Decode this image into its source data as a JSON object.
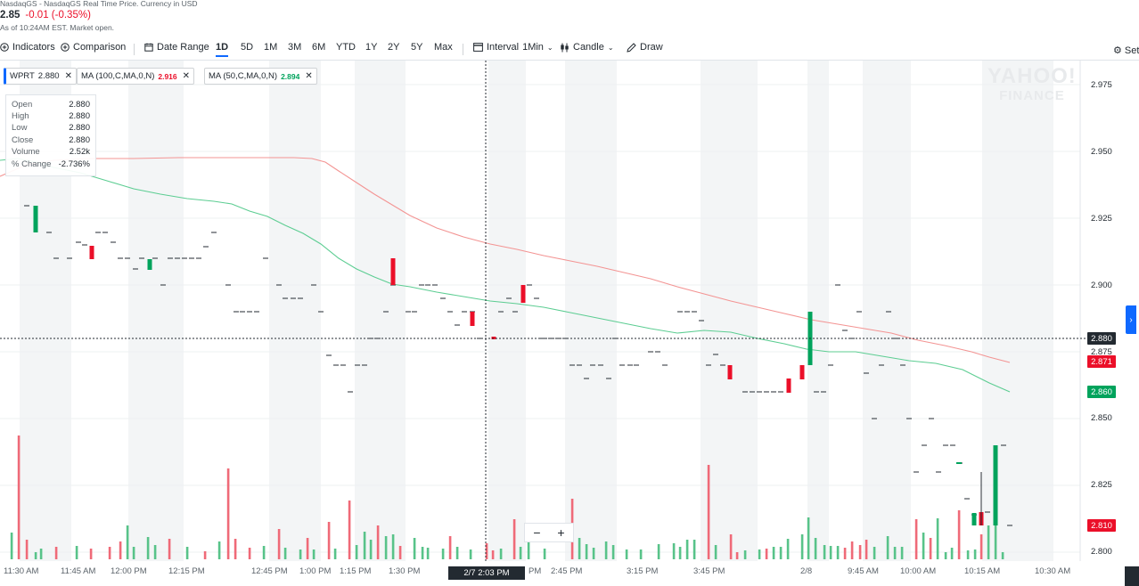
{
  "header": {
    "source_line": "NasdaqGS - NasdaqGS Real Time Price. Currency in USD",
    "price": "2.85",
    "change": "-0.01 (-0.35%)",
    "status_line": "As of 10:24AM EST. Market open."
  },
  "toolbar": {
    "indicators": "Indicators",
    "comparison": "Comparison",
    "date_range": "Date Range",
    "ranges": [
      "1D",
      "5D",
      "1M",
      "3M",
      "6M",
      "YTD",
      "1Y",
      "2Y",
      "5Y",
      "Max"
    ],
    "active_range": "1D",
    "interval_label": "Interval",
    "interval_value": "1Min",
    "candle": "Candle",
    "draw": "Draw",
    "settings": "Set"
  },
  "chips": [
    {
      "label": "WPRT",
      "value": "2.880",
      "value_color": "#232a31"
    },
    {
      "label": "MA (100,C,MA,0,N)",
      "value": "2.916",
      "value_color": "#eb0f29"
    },
    {
      "label": "MA (50,C,MA,0,N)",
      "value": "2.894",
      "value_color": "#00a35c"
    }
  ],
  "tooltip": {
    "rows": [
      {
        "k": "Open",
        "v": "2.880"
      },
      {
        "k": "High",
        "v": "2.880"
      },
      {
        "k": "Low",
        "v": "2.880"
      },
      {
        "k": "Close",
        "v": "2.880"
      },
      {
        "k": "Volume",
        "v": "2.52k"
      },
      {
        "k": "% Change",
        "v": "-2.736%"
      }
    ]
  },
  "watermark": {
    "line1": "YAHOO!",
    "line2": "FINANCE"
  },
  "y_ticks": [
    "2.975",
    "2.950",
    "2.925",
    "2.900",
    "2.875",
    "2.850",
    "2.825",
    "2.800"
  ],
  "badges": {
    "crosshair": "2.880",
    "ma100": "2.871",
    "ma50": "2.860",
    "last": "2.810"
  },
  "x_ticks": [
    "11:30 AM",
    "11:45 AM",
    "12:00 PM",
    "12:15 PM",
    "12:45 PM",
    "1:00 PM",
    "1:15 PM",
    "1:30 PM",
    "2:45 PM",
    "3:15 PM",
    "3:45 PM",
    "2/8",
    "9:45 AM",
    "10:00 AM",
    "10:15 AM",
    "10:30 AM"
  ],
  "x_partial": "PM",
  "crosshair_time": "2/7 2:03 PM",
  "zoom": {
    "minus": "−",
    "plus": "+"
  },
  "colors": {
    "up": "#00a35c",
    "down": "#eb0f29",
    "ma100": "#f39493",
    "ma50": "#5ccd92",
    "accent": "#0f69ff"
  },
  "chart_data": {
    "type": "candlestick",
    "instrument": "WPRT",
    "ylim": [
      2.795,
      2.985
    ],
    "candles": [
      {
        "t": "2/7 11:33 AM",
        "o": 2.93,
        "c": 2.92,
        "dir": "down"
      },
      {
        "t": "2/7 11:52 AM",
        "o": 2.915,
        "c": 2.91,
        "dir": "down"
      },
      {
        "t": "2/7 12:05 PM",
        "o": 2.905,
        "c": 2.91,
        "dir": "up"
      },
      {
        "t": "2/7 1:36 PM",
        "o": 2.91,
        "c": 2.9,
        "dir": "down"
      },
      {
        "t": "2/7 1:58 PM",
        "o": 2.89,
        "c": 2.885,
        "dir": "down"
      },
      {
        "t": "2/7 2:02 PM",
        "o": 2.88,
        "c": 2.88,
        "dir": "down"
      },
      {
        "t": "2/7 2:14 PM",
        "o": 2.9,
        "c": 2.895,
        "dir": "down"
      },
      {
        "t": "2/7 3:52 PM",
        "o": 2.87,
        "c": 2.865,
        "dir": "down"
      },
      {
        "t": "2/7 3:58 PM",
        "o": 2.865,
        "c": 2.86,
        "dir": "down"
      },
      {
        "t": "2/8 9:31 AM",
        "o": 2.87,
        "c": 2.89,
        "dir": "up"
      },
      {
        "t": "2/8 10:12 AM",
        "o": 2.81,
        "c": 2.815,
        "dir": "up"
      },
      {
        "t": "2/8 10:14 AM",
        "o": 2.815,
        "c": 2.81,
        "dir": "down"
      },
      {
        "t": "2/8 10:17 AM",
        "o": 2.81,
        "c": 2.84,
        "dir": "up"
      }
    ],
    "ma100": {
      "name": "MA (100,C,MA,0,N)",
      "last": 2.871
    },
    "ma50": {
      "name": "MA (50,C,MA,0,N)",
      "last": 2.86
    }
  }
}
